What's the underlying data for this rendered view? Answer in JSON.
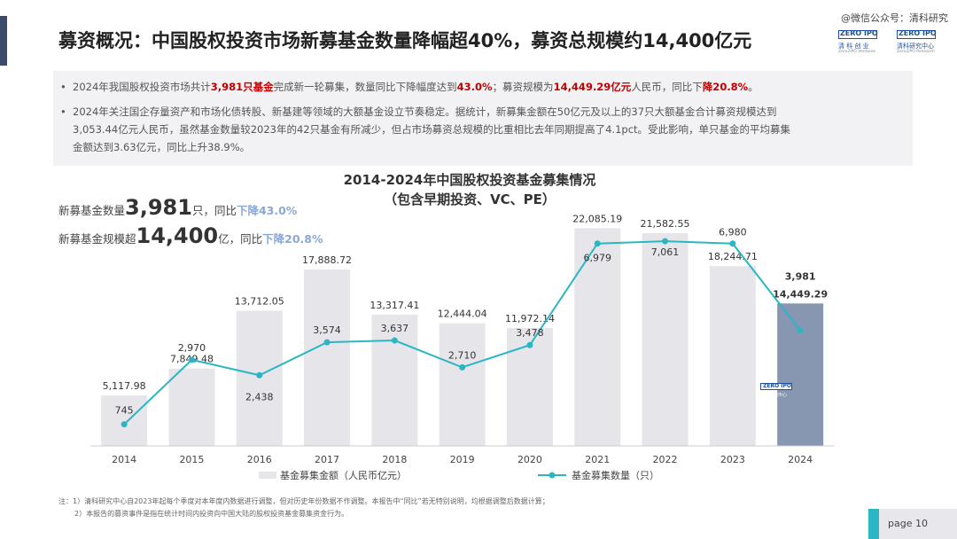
{
  "watermark": "@微信公众号：清科研究",
  "title": "募资概况：中国股权投资市场新募基金数量降幅超40%，募资总规模约14,400亿元",
  "logos": [
    {
      "box": "ZERO IPO",
      "cn": "清 科 创 业",
      "en": "Zero2IPO Ventures"
    },
    {
      "box": "ZERO IPO",
      "cn": "清科研究中心",
      "en": "Zero2IPO Research"
    }
  ],
  "bullets": {
    "b1": {
      "t1": "2024年我国股权投资市场共计",
      "r1": "3,981只基金",
      "t2": "完成新一轮募集，数量同比下降幅度达到",
      "r2": "43.0%",
      "t3": "；募资规模为",
      "r3": "14,449.29亿元",
      "t4": "人民币，同比下",
      "r4": "降20.8%",
      "t5": "。"
    },
    "b2": {
      "line1": "2024年关注国企存量资产和市场化债转股、新基建等领域的大额基金设立节奏稳定。据统计，新募集金额在50亿元及以上的37只大额基金合计募资规模达到",
      "line2": "3,053.44亿元人民币，虽然基金数量较2023年的42只基金有所减少，但占市场募资总规模的比重相比去年同期提高了4.1pct。受此影响，单只基金的平均募集",
      "line3": "金额达到3.63亿元，同比上升38.9%。"
    }
  },
  "chart_title": {
    "line1": "2014-2024年中国股权投资基金募集情况",
    "line2": "（包含早期投资、VC、PE）"
  },
  "kpi": {
    "k1_pre": "新募基金数量",
    "k1_big": "3,981",
    "k1_unit": "只，同比",
    "k1_hl": "下降43.0%",
    "k2_pre": "新募基金规模超",
    "k2_big": "14,400",
    "k2_unit": "亿，同比",
    "k2_hl": "下降20.8%"
  },
  "stamp": {
    "box": "ZERO IPO",
    "cn": "清科研究中心"
  },
  "chart_data": {
    "type": "bar",
    "title": "2014-2024年中国股权投资基金募集情况（包含早期投资、VC、PE）",
    "categories": [
      "2014",
      "2015",
      "2016",
      "2017",
      "2018",
      "2019",
      "2020",
      "2021",
      "2022",
      "2023",
      "2024"
    ],
    "series": [
      {
        "name": "基金募集金额（人民币亿元）",
        "type": "bar",
        "values": [
          5117.98,
          7849.48,
          13712.05,
          17888.72,
          13317.41,
          12444.04,
          11972.14,
          22085.19,
          21582.55,
          18244.71,
          14449.29
        ],
        "labels": [
          "5,117.98",
          "7,849.48",
          "13,712.05",
          "17,888.72",
          "13,317.41",
          "12,444.04",
          "11,972.14",
          "22,085.19",
          "21,582.55",
          "18,244.71",
          "14,449.29"
        ],
        "color": "#e6e6ea",
        "highlight_color": "#8797b2"
      },
      {
        "name": "基金募集数量（只）",
        "type": "line",
        "values": [
          745,
          2970,
          2438,
          3574,
          3637,
          2710,
          3478,
          6979,
          7061,
          6980,
          3981
        ],
        "labels": [
          "745",
          "2,970",
          "2,438",
          "3,574",
          "3,637",
          "2,710",
          "3,478",
          "6,979",
          "7,061",
          "6,980",
          "3,981"
        ],
        "color": "#2bb6c4"
      }
    ],
    "ylim_bar": [
      0,
      25000
    ],
    "ylim_line": [
      0,
      8500
    ]
  },
  "footnotes": {
    "line1": "注：1）清科研究中心自2023年起每个季度对本年度内数据进行调整，但对历史年份数据不作调整。本报告中“同比”若无特别说明，均根据调整后数据计算；",
    "line2": "2）本报告的募资事件是指在统计时间内投资向中国大陆的股权投资基金募集资金行为。"
  },
  "page_label": "page  10"
}
